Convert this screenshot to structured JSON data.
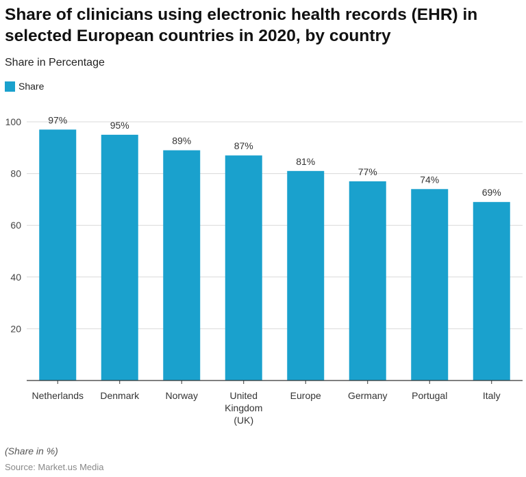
{
  "chart_data": {
    "type": "bar",
    "title": "Share of clinicians using electronic health records (EHR) in selected European countries in 2020, by country",
    "subtitle": "Share in Percentage",
    "categories": [
      "Netherlands",
      "Denmark",
      "Norway",
      "United Kingdom (UK)",
      "Europe",
      "Germany",
      "Portugal",
      "Italy"
    ],
    "series": [
      {
        "name": "Share",
        "values": [
          97,
          95,
          89,
          87,
          81,
          77,
          74,
          69
        ],
        "color": "#1aa1cd"
      }
    ],
    "data_labels": [
      "97%",
      "95%",
      "89%",
      "87%",
      "81%",
      "77%",
      "74%",
      "69%"
    ],
    "ylim": [
      0,
      100
    ],
    "yticks": [
      20,
      40,
      60,
      80,
      100
    ],
    "grid": true,
    "legend": "top-left",
    "note": "(Share in %)",
    "source": "Source: Market.us Media"
  }
}
